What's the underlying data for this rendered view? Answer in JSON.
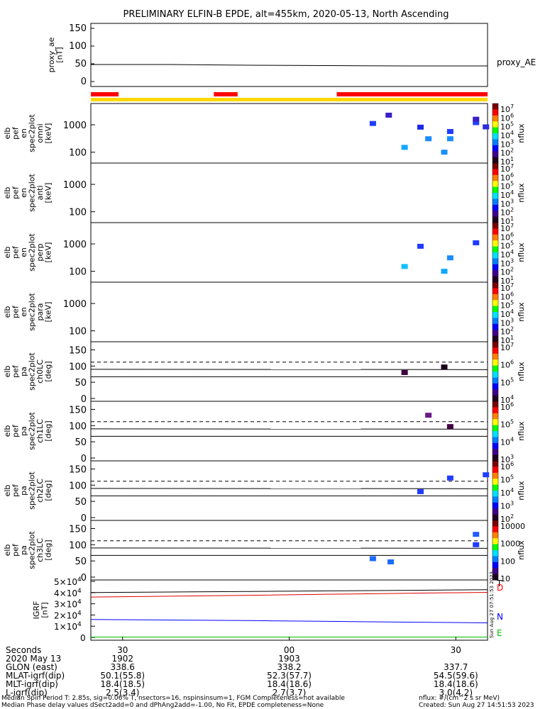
{
  "title": "PRELIMINARY ELFIN-B EPDE, alt=455km, 2020-05-13, North Ascending",
  "ae_panel": {
    "ylabel": [
      "proxy_ae",
      "[nT]"
    ],
    "yticks": [
      "150",
      "100",
      "50",
      "0"
    ],
    "legend": "proxy_AE",
    "values_x": [
      0,
      0.2,
      0.4,
      0.6,
      0.8,
      1.0
    ],
    "values_y": [
      48,
      48,
      46,
      45,
      44,
      44
    ]
  },
  "status_bars": {
    "red_segments": [
      [
        0.0,
        0.07
      ],
      [
        0.31,
        0.37
      ],
      [
        0.62,
        1.0
      ]
    ],
    "red_color": "#ff0000",
    "yellow_color": "#ffd800"
  },
  "spec_panels": [
    {
      "ylabel": [
        "elb",
        "pef",
        "en",
        "spec2plot",
        "omni",
        "[keV]"
      ],
      "yticks": [
        "1000",
        "100"
      ],
      "cbar_ticks": [
        "10^7",
        "10^6",
        "10^5",
        "10^4",
        "10^3",
        "10^2",
        "10^1"
      ],
      "cbar_label": "nflux",
      "blocks": [
        [
          0.71,
          1120,
          "#1f3cff"
        ],
        [
          0.75,
          2250,
          "#3a1fc9"
        ],
        [
          0.79,
          150,
          "#10a8ff"
        ],
        [
          0.83,
          820,
          "#1a2ae6"
        ],
        [
          0.85,
          310,
          "#1c8cff"
        ],
        [
          0.89,
          100,
          "#1a90ff"
        ],
        [
          0.905,
          570,
          "#1f3cff"
        ],
        [
          0.905,
          310,
          "#1c8cff"
        ],
        [
          0.97,
          1200,
          "#2040ff"
        ],
        [
          0.97,
          1600,
          "#3a1fc9"
        ],
        [
          0.995,
          840,
          "#2a2adf"
        ]
      ]
    },
    {
      "ylabel": [
        "elb",
        "pef",
        "en",
        "spec2plot",
        "anti",
        "[keV]"
      ],
      "yticks": [
        "1000",
        "100"
      ],
      "cbar_ticks": [
        "10^7",
        "10^6",
        "10^5",
        "10^4",
        "10^3",
        "10^2",
        "10^1"
      ],
      "cbar_label": "nflux",
      "blocks": []
    },
    {
      "ylabel": [
        "elb",
        "pef",
        "en",
        "spec2plot",
        "perp",
        "[keV]"
      ],
      "yticks": [
        "1000",
        "100"
      ],
      "cbar_ticks": [
        "10^7",
        "10^6",
        "10^5",
        "10^4",
        "10^3",
        "10^2",
        "10^1"
      ],
      "cbar_label": "nflux",
      "blocks": [
        [
          0.79,
          150,
          "#10c0ff"
        ],
        [
          0.83,
          820,
          "#1f3cff"
        ],
        [
          0.89,
          100,
          "#10a8ff"
        ],
        [
          0.905,
          310,
          "#1c8cff"
        ],
        [
          0.97,
          1100,
          "#1f3cff"
        ]
      ]
    },
    {
      "ylabel": [
        "elb",
        "pef",
        "en",
        "spec2plot",
        "para",
        "[keV]"
      ],
      "yticks": [
        "1000",
        "100"
      ],
      "cbar_ticks": [
        "10^7",
        "10^6",
        "10^5",
        "10^4",
        "10^3",
        "10^2",
        "10^1"
      ],
      "cbar_label": "nflux",
      "blocks": []
    }
  ],
  "pa_panels": [
    {
      "ylabel": [
        "elb",
        "pef",
        "pa",
        "spec2plot",
        "ch0LC",
        "[deg]"
      ],
      "yticks": [
        "150",
        "100",
        "50",
        "0"
      ],
      "cbar_ticks": [
        "10^7",
        "10^6",
        "10^5",
        "10^4"
      ],
      "cbar_label": "nflux",
      "blocks": [
        [
          0.79,
          80,
          "#400040"
        ],
        [
          0.89,
          97,
          "#1a0018"
        ]
      ]
    },
    {
      "ylabel": [
        "elb",
        "pef",
        "pa",
        "spec2plot",
        "ch1LC",
        "[deg]"
      ],
      "yticks": [
        "150",
        "100",
        "50",
        "0"
      ],
      "cbar_ticks": [
        "10^6",
        "10^5",
        "10^4",
        "10^3"
      ],
      "cbar_label": "nflux",
      "blocks": [
        [
          0.85,
          132,
          "#6a1a8a"
        ],
        [
          0.905,
          97,
          "#400040"
        ]
      ]
    },
    {
      "ylabel": [
        "elb",
        "pef",
        "pa",
        "spec2plot",
        "ch2LC",
        "[deg]"
      ],
      "yticks": [
        "150",
        "100",
        "50",
        "0"
      ],
      "cbar_ticks": [
        "10^6",
        "10^5",
        "10^4",
        "10^3",
        "10^2"
      ],
      "cbar_label": "nflux",
      "blocks": [
        [
          0.83,
          80,
          "#1f3cff"
        ],
        [
          0.905,
          122,
          "#1f3cff"
        ],
        [
          0.995,
          132,
          "#1f3cff"
        ]
      ]
    },
    {
      "ylabel": [
        "elb",
        "pef",
        "pa",
        "spec2plot",
        "ch3LC",
        "[deg]"
      ],
      "yticks": [
        "150",
        "100",
        "50",
        "0"
      ],
      "cbar_ticks": [
        "10000",
        "1000",
        "100",
        "10"
      ],
      "cbar_label": "nflux",
      "blocks": [
        [
          0.71,
          57,
          "#1c6cff"
        ],
        [
          0.755,
          47,
          "#1c6cff"
        ],
        [
          0.97,
          132,
          "#1f5cff"
        ],
        [
          0.97,
          100,
          "#1f3cff"
        ]
      ]
    }
  ],
  "igrf_panel": {
    "ylabel": [
      "IGRF",
      "[nT]"
    ],
    "yticks": [
      "5×10^4",
      "4×10^4",
      "3×10^4",
      "2×10^4",
      "1×10^4",
      "0"
    ],
    "ylim": [
      0,
      50000
    ],
    "legend": [
      "T",
      "D",
      "N",
      "E"
    ],
    "legend_colors": [
      "#000000",
      "#ff0000",
      "#0000ff",
      "#00c000"
    ],
    "series": [
      {
        "color": "#000000",
        "values": [
          40000,
          40500,
          41000,
          41500,
          42000,
          42600
        ]
      },
      {
        "color": "#dd0000",
        "values": [
          36000,
          36800,
          37600,
          38500,
          39400,
          40200
        ]
      },
      {
        "color": "#0000ff",
        "values": [
          16000,
          15500,
          15000,
          14300,
          13600,
          13000
        ]
      },
      {
        "color": "#00c000",
        "values": [
          300,
          300,
          300,
          300,
          300,
          300
        ]
      }
    ],
    "side_stamp": "Sun Aug 27 07:51:53 2023"
  },
  "x_axis": {
    "labels": [
      "Seconds",
      "2020 May 13",
      "GLON (east)",
      "MLAT-igrf(dip)",
      "MLT-igrf(dip)",
      "L-igrf(dip)"
    ],
    "columns": [
      {
        "pos": 0.08,
        "values": [
          "30",
          "1902",
          "338.6",
          "50.1(55.8)",
          "18.4(18.5)",
          "2.5(3.4)"
        ]
      },
      {
        "pos": 0.5,
        "values": [
          "00",
          "1903",
          "338.2",
          "52.3(57.7)",
          "18.4(18.6)",
          "2.7(3.7)"
        ]
      },
      {
        "pos": 0.92,
        "values": [
          "30",
          "",
          "337.7",
          "54.5(59.6)",
          "18.4(18.6)",
          "3.0(4.2)"
        ]
      }
    ]
  },
  "footer": {
    "line1": "Median Spin Period T: 2.85s, sig=0.06% T, nsectors=16, nspinsinsum=1, FGM Completeness=not available",
    "line2": "Median Phase delay values dSect2add=0 and dPhAng2add=-1.00, No Fit, EPDE completeness=None",
    "nflux_unit": "nflux: #/(cm^2 s sr MeV)",
    "created": "Created: Sun Aug 27 14:51:53 2023"
  }
}
